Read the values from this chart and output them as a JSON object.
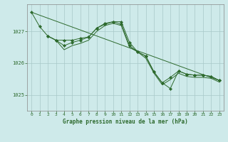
{
  "title": "Graphe pression niveau de la mer (hPa)",
  "background_color": "#ceeaea",
  "grid_color": "#a8c8c8",
  "line_color": "#2d6a2d",
  "xlim": [
    -0.5,
    23.5
  ],
  "ylim": [
    1024.5,
    1027.85
  ],
  "yticks": [
    1025,
    1026,
    1027
  ],
  "xticks": [
    0,
    1,
    2,
    3,
    4,
    5,
    6,
    7,
    8,
    9,
    10,
    11,
    12,
    13,
    14,
    15,
    16,
    17,
    18,
    19,
    20,
    21,
    22,
    23
  ],
  "series": [
    {
      "x": [
        0,
        23
      ],
      "y": [
        1027.6,
        1025.45
      ],
      "has_markers": false
    },
    {
      "x": [
        0,
        1,
        2,
        3,
        4,
        5,
        6,
        7,
        8,
        9,
        10,
        11,
        12,
        13,
        14,
        15,
        16,
        17,
        18,
        19,
        20,
        21,
        22,
        23
      ],
      "y": [
        1027.6,
        1027.15,
        1026.85,
        1026.72,
        1026.72,
        1026.72,
        1026.78,
        1026.82,
        1027.1,
        1027.25,
        1027.3,
        1027.3,
        1026.65,
        1026.35,
        1026.22,
        1025.72,
        1025.38,
        1025.2,
        1025.75,
        1025.65,
        1025.62,
        1025.62,
        1025.58,
        1025.45
      ],
      "has_markers": true
    },
    {
      "x": [
        2,
        3,
        4,
        5,
        6,
        7,
        8,
        9,
        10,
        11,
        12,
        13,
        14,
        15,
        16,
        17,
        18,
        19,
        20,
        21,
        22,
        23
      ],
      "y": [
        1026.85,
        1026.72,
        1026.55,
        1026.65,
        1026.72,
        1026.82,
        1027.1,
        1027.22,
        1027.3,
        1027.22,
        1026.55,
        1026.35,
        1026.22,
        1025.72,
        1025.38,
        1025.55,
        1025.75,
        1025.65,
        1025.62,
        1025.62,
        1025.58,
        1025.45
      ],
      "has_markers": true
    },
    {
      "x": [
        2,
        3,
        4,
        5,
        6,
        7,
        8,
        9,
        10,
        11,
        12,
        13,
        14,
        15,
        16,
        17,
        18,
        19,
        20,
        21,
        22,
        23
      ],
      "y": [
        1026.85,
        1026.72,
        1026.42,
        1026.55,
        1026.62,
        1026.72,
        1027.0,
        1027.18,
        1027.25,
        1027.18,
        1026.5,
        1026.35,
        1026.15,
        1025.68,
        1025.32,
        1025.48,
        1025.68,
        1025.58,
        1025.55,
        1025.55,
        1025.52,
        1025.4
      ],
      "has_markers": false
    }
  ]
}
